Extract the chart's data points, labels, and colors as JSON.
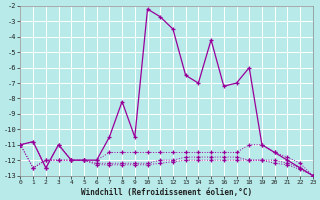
{
  "xlabel": "Windchill (Refroidissement éolien,°C)",
  "background_color": "#b8eaea",
  "grid_color": "#d0f0f0",
  "line_color": "#990099",
  "hours": [
    0,
    1,
    2,
    3,
    4,
    5,
    6,
    7,
    8,
    9,
    10,
    11,
    12,
    13,
    14,
    15,
    16,
    17,
    18,
    19,
    20,
    21,
    22,
    23
  ],
  "line1": [
    -11.0,
    -10.8,
    -12.5,
    -11.0,
    -12.0,
    -12.0,
    -12.0,
    -10.5,
    -8.2,
    -10.5,
    -2.2,
    -2.7,
    -3.5,
    -6.5,
    -7.0,
    -4.2,
    -7.2,
    -7.0,
    -6.0,
    -11.0,
    -11.5,
    -12.0,
    -12.5,
    -13.0
  ],
  "line2": [
    -11.0,
    -10.8,
    -12.5,
    -11.0,
    -12.0,
    -12.0,
    -12.0,
    -11.5,
    -11.5,
    -11.5,
    -11.5,
    -11.5,
    -11.5,
    -11.5,
    -11.5,
    -11.5,
    -11.5,
    -11.5,
    -11.0,
    -11.0,
    -11.5,
    -11.8,
    -12.2,
    -13.0
  ],
  "line3": [
    -11.0,
    -12.5,
    -12.0,
    -12.0,
    -12.0,
    -12.0,
    -12.2,
    -12.2,
    -12.2,
    -12.2,
    -12.2,
    -12.0,
    -12.0,
    -11.8,
    -11.8,
    -11.8,
    -11.8,
    -11.8,
    -12.0,
    -12.0,
    -12.0,
    -12.2,
    -12.5,
    -13.0
  ],
  "line4": [
    -11.0,
    -12.5,
    -12.0,
    -12.0,
    -12.0,
    -12.0,
    -12.3,
    -12.3,
    -12.3,
    -12.3,
    -12.3,
    -12.2,
    -12.1,
    -12.0,
    -12.0,
    -12.0,
    -12.0,
    -12.0,
    -12.0,
    -12.0,
    -12.2,
    -12.3,
    -12.6,
    -13.0
  ],
  "ylim": [
    -13,
    -2
  ],
  "xlim": [
    0,
    23
  ],
  "yticks": [
    -2,
    -3,
    -4,
    -5,
    -6,
    -7,
    -8,
    -9,
    -10,
    -11,
    -12,
    -13
  ],
  "xticks": [
    0,
    1,
    2,
    3,
    4,
    5,
    6,
    7,
    8,
    9,
    10,
    11,
    12,
    13,
    14,
    15,
    16,
    17,
    18,
    19,
    20,
    21,
    22,
    23
  ]
}
